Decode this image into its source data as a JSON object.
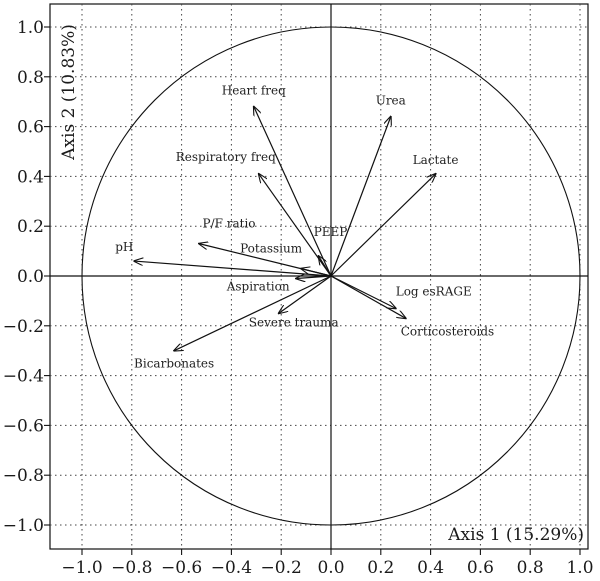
{
  "chart_data": {
    "type": "correlation-circle",
    "xlabel": "Axis 1 (15.29%)",
    "ylabel": "Axis 2 (10.83%)",
    "xlim": [
      -1.1,
      1.1
    ],
    "ylim": [
      -1.1,
      1.1
    ],
    "x_ticks": [
      -1.0,
      -0.8,
      -0.6,
      -0.4,
      -0.2,
      0.0,
      0.2,
      0.4,
      0.6,
      0.8,
      1.0
    ],
    "y_ticks": [
      -1.0,
      -0.8,
      -0.6,
      -0.4,
      -0.2,
      0.0,
      0.2,
      0.4,
      0.6,
      0.8,
      1.0
    ],
    "x_tick_labels": [
      "−1.0",
      "−0.8",
      "−0.6",
      "−0.4",
      "−0.2",
      "0.0",
      "0.2",
      "0.4",
      "0.6",
      "0.8",
      "1.0"
    ],
    "y_tick_labels": [
      "−1.0",
      "−0.8",
      "−0.6",
      "−0.4",
      "−0.2",
      "0.0",
      "0.2",
      "0.4",
      "0.6",
      "0.8",
      "1.0"
    ],
    "grid": "dotted",
    "unit_circle": true,
    "variables": [
      {
        "name": "Heart freq",
        "x": -0.31,
        "y": 0.68
      },
      {
        "name": "Urea",
        "x": 0.24,
        "y": 0.64
      },
      {
        "name": "Lactate",
        "x": 0.42,
        "y": 0.41
      },
      {
        "name": "Respiratory freq",
        "x": -0.29,
        "y": 0.41
      },
      {
        "name": "P/F ratio",
        "x": -0.53,
        "y": 0.13
      },
      {
        "name": "pH",
        "x": -0.79,
        "y": 0.06
      },
      {
        "name": "PEEP",
        "x": -0.05,
        "y": 0.08
      },
      {
        "name": "Potassium",
        "x": -0.12,
        "y": 0.03
      },
      {
        "name": "Aspiration",
        "x": -0.14,
        "y": -0.01
      },
      {
        "name": "Severe trauma",
        "x": -0.21,
        "y": -0.15
      },
      {
        "name": "Bicarbonates",
        "x": -0.63,
        "y": -0.3
      },
      {
        "name": "Log esRAGE",
        "x": 0.26,
        "y": -0.13
      },
      {
        "name": "Corticosteroids",
        "x": 0.3,
        "y": -0.17
      }
    ]
  }
}
